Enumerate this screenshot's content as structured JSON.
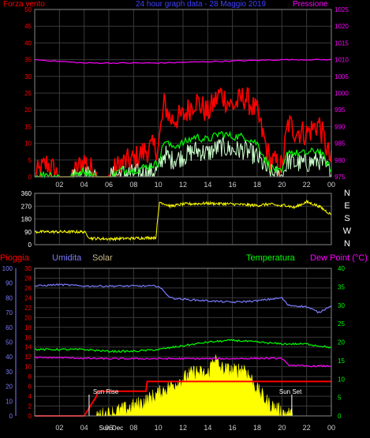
{
  "header": {
    "left_label": "Forza vento",
    "title": "24 hour graph data - 28 Maggio 2019",
    "right_label": "Pressione"
  },
  "colors": {
    "red": "#ff0000",
    "magenta": "#ff00ff",
    "blue": "#4040ff",
    "green": "#00ff00",
    "yellow": "#ffff00",
    "white": "#ffffff",
    "mint": "#ccffcc",
    "grid": "#3a3a3a",
    "tan": "#c8b98a",
    "slateblue": "#7b7bff"
  },
  "chart_data": [
    {
      "type": "line",
      "title": "24 hour graph data - 28 Maggio 2019",
      "ylabel_left": "Forza vento",
      "ylabel_right": "Pressione",
      "ylim_left": [
        0,
        50
      ],
      "ylim_right": [
        975,
        1025
      ],
      "yticks_left": [
        "0",
        "5",
        "10",
        "15",
        "20",
        "25",
        "30",
        "35",
        "40",
        "45",
        "50"
      ],
      "yticks_right": [
        "975",
        "980",
        "985",
        "990",
        "995",
        "1000",
        "1005",
        "1010",
        "1015",
        "1020",
        "1025"
      ],
      "xticks": [
        "02",
        "04",
        "06",
        "08",
        "10",
        "12",
        "14",
        "16",
        "18",
        "20",
        "22",
        "00"
      ],
      "grid": true,
      "series": [
        {
          "name": "Pressione",
          "axis": "right",
          "color": "#ff00ff",
          "x": [
            0,
            2,
            4,
            6,
            8,
            10,
            12,
            14,
            16,
            18,
            20,
            22,
            24
          ],
          "values": [
            1010,
            1009.5,
            1009,
            1009,
            1009,
            1009,
            1009.2,
            1009.4,
            1009.6,
            1009.8,
            1010,
            1010,
            1010
          ]
        },
        {
          "name": "gust",
          "axis": "left",
          "color": "#ff0000",
          "x": [
            0,
            1,
            2,
            3,
            4,
            5,
            6,
            7,
            8,
            9,
            10,
            10.5,
            11,
            12,
            13,
            14,
            15,
            16,
            17,
            18,
            19,
            20,
            20.5,
            21,
            22,
            23,
            24
          ],
          "values": [
            0,
            4,
            0,
            0,
            5,
            0,
            0,
            4,
            5,
            8,
            9,
            22,
            17,
            18,
            23,
            19,
            25,
            21,
            24,
            19,
            5,
            3,
            16,
            14,
            13,
            16,
            4
          ]
        },
        {
          "name": "avg",
          "axis": "left",
          "color": "#00ff00",
          "x": [
            0,
            1,
            2,
            3,
            4,
            5,
            6,
            7,
            8,
            9,
            10,
            10.5,
            11,
            12,
            13,
            14,
            15,
            16,
            17,
            18,
            19,
            20,
            20.5,
            21,
            22,
            23,
            24
          ],
          "values": [
            0,
            1,
            0,
            0,
            2,
            0,
            0,
            2,
            2,
            3,
            4,
            11,
            9,
            10,
            12,
            11,
            13,
            12,
            12,
            10,
            3,
            1,
            8,
            7,
            7,
            8,
            2
          ]
        },
        {
          "name": "wind",
          "axis": "left",
          "color": "#ccffcc",
          "x": [
            0,
            1,
            2,
            3,
            4,
            5,
            6,
            7,
            8,
            9,
            10,
            10.5,
            11,
            12,
            13,
            14,
            15,
            16,
            17,
            18,
            19,
            20,
            20.5,
            21,
            22,
            23,
            24
          ],
          "values": [
            0,
            0,
            0,
            0,
            1,
            0,
            0,
            1,
            1,
            1,
            2,
            7,
            5,
            6,
            8,
            7,
            9,
            8,
            8,
            6,
            1,
            0,
            5,
            4,
            4,
            5,
            1
          ]
        }
      ]
    },
    {
      "type": "line",
      "ylim": [
        0,
        360
      ],
      "yticks": [
        "0",
        "90",
        "180",
        "270",
        "360"
      ],
      "yticks_right": [
        "N",
        "W",
        "S",
        "E",
        "N"
      ],
      "xticks": [
        "02",
        "04",
        "06",
        "08",
        "10",
        "12",
        "14",
        "16",
        "18",
        "20",
        "22",
        "00"
      ],
      "grid": true,
      "series": [
        {
          "name": "direction",
          "color": "#ffff00",
          "x": [
            0,
            2,
            4,
            4.5,
            6,
            8,
            9.8,
            10.1,
            11,
            12,
            14,
            16,
            18,
            19,
            20,
            20.2,
            21,
            22,
            23,
            24
          ],
          "values": [
            90,
            90,
            90,
            45,
            40,
            45,
            50,
            300,
            270,
            285,
            290,
            285,
            275,
            285,
            270,
            280,
            260,
            300,
            270,
            210
          ]
        }
      ]
    },
    {
      "type": "line",
      "ylabel_left": "Pioggia",
      "ylabel_left2": "Umidita",
      "ylabel_left3": "Solar",
      "ylabel_right": "Temperatura",
      "ylabel_right2": "Dew Point (°C)",
      "ylim_humidity": [
        0,
        100
      ],
      "ylim_rain": [
        0,
        30
      ],
      "ylim_temp": [
        0,
        40
      ],
      "yticks_humidity": [
        "0",
        "10",
        "20",
        "30",
        "40",
        "50",
        "60",
        "70",
        "80",
        "90",
        "100"
      ],
      "yticks_rain": [
        "0",
        "2",
        "4",
        "6",
        "8",
        "10",
        "12",
        "14",
        "16",
        "18",
        "20",
        "22",
        "24",
        "26",
        "28",
        "30"
      ],
      "yticks_temp": [
        "0",
        "5",
        "10",
        "15",
        "20",
        "25",
        "30",
        "35",
        "40"
      ],
      "xticks": [
        "02",
        "04",
        "06",
        "08",
        "10",
        "12",
        "14",
        "16",
        "18",
        "20",
        "22",
        "00"
      ],
      "annotations": [
        "Sun Rise",
        "Sun Set",
        "Sun Dec"
      ],
      "grid": true,
      "series": [
        {
          "name": "Umidita",
          "axis": "humidity",
          "color": "#7b7bff",
          "x": [
            0,
            2,
            4,
            6,
            8,
            10,
            11,
            12,
            14,
            16,
            18,
            20,
            20.5,
            22,
            23,
            24
          ],
          "values": [
            88,
            89,
            88,
            88,
            88,
            88,
            80,
            79,
            78,
            77,
            78,
            80,
            75,
            74,
            70,
            75
          ]
        },
        {
          "name": "Temperatura",
          "axis": "temp",
          "color": "#00ff00",
          "x": [
            0,
            2,
            4,
            6,
            8,
            10,
            12,
            14,
            16,
            18,
            20,
            22,
            24
          ],
          "values": [
            18,
            18,
            18,
            17.5,
            17.5,
            18,
            19,
            20,
            20.5,
            20,
            19.5,
            19.5,
            18.5
          ]
        },
        {
          "name": "Dew Point",
          "axis": "temp",
          "color": "#ff00ff",
          "x": [
            0,
            2,
            4,
            6,
            8,
            10,
            12,
            14,
            16,
            18,
            20,
            20.5,
            22,
            24
          ],
          "values": [
            15.8,
            15.8,
            15.6,
            15.5,
            15.5,
            15.5,
            15.5,
            15.5,
            15.5,
            15.6,
            15.6,
            13.8,
            13.5,
            13.5
          ]
        },
        {
          "name": "Pioggia",
          "axis": "rain",
          "color": "#ff0000",
          "x": [
            0,
            4,
            5,
            5.1,
            9,
            9.1,
            24
          ],
          "values": [
            0,
            0,
            4,
            5,
            5,
            7,
            7
          ]
        },
        {
          "name": "Solar",
          "axis": "temp",
          "color": "#ffff00",
          "fill": true,
          "x": [
            0,
            5,
            6,
            7,
            8,
            9,
            10,
            11,
            12,
            13,
            14,
            14.5,
            15,
            16,
            17,
            18,
            19,
            20,
            21,
            24
          ],
          "values": [
            0,
            0,
            0.5,
            1.5,
            2.5,
            4,
            6,
            8,
            10,
            12,
            11,
            16,
            13,
            12,
            13,
            7,
            3,
            1,
            0,
            0
          ]
        }
      ]
    }
  ]
}
